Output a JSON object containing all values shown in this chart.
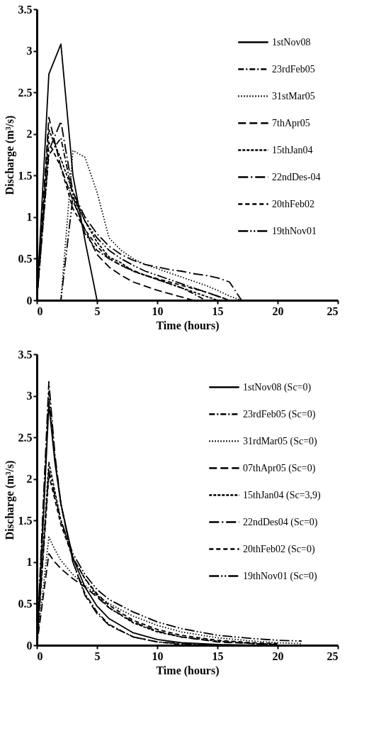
{
  "chart_data": [
    {
      "type": "line",
      "xlabel": "Time (hours)",
      "ylabel": "Discharge (m³/s)",
      "xlim": [
        0,
        25
      ],
      "xticks": [
        0,
        5,
        10,
        15,
        20,
        25
      ],
      "ylim": [
        0,
        3.5
      ],
      "yticks": [
        0,
        0.5,
        1,
        1.5,
        2,
        2.5,
        3,
        3.5
      ],
      "grid": false,
      "legend": "top right",
      "series": [
        {
          "name": "1stNov08",
          "color": "#000000",
          "line_style": "solid",
          "x": [
            0,
            1,
            2,
            3,
            4,
            5
          ],
          "values": [
            0,
            2.72,
            3.08,
            1.5,
            0.72,
            0
          ]
        },
        {
          "name": "23rdFeb05",
          "color": "#000000",
          "line_style": "dashed",
          "x": [
            0,
            1,
            2,
            3,
            4,
            5,
            6,
            7,
            8,
            9,
            10,
            11,
            12,
            13,
            14
          ],
          "values": [
            0,
            1.75,
            1.95,
            1.25,
            0.8,
            0.6,
            0.5,
            0.42,
            0.35,
            0.3,
            0.25,
            0.2,
            0.15,
            0.08,
            0
          ]
        },
        {
          "name": "31stMar05",
          "color": "#000000",
          "line_style": "dotted",
          "x": [
            0,
            1,
            2,
            3,
            4,
            5,
            6,
            7,
            8,
            9,
            10,
            11,
            12,
            13,
            14,
            15,
            16,
            17
          ],
          "values": [
            0,
            0,
            0,
            1.8,
            1.72,
            1.3,
            0.75,
            0.6,
            0.5,
            0.43,
            0.38,
            0.33,
            0.28,
            0.23,
            0.18,
            0.12,
            0.05,
            0
          ]
        },
        {
          "name": "7thApr05",
          "color": "#000000",
          "line_style": "dashed",
          "x": [
            0,
            1,
            2,
            3,
            4,
            5,
            6,
            7,
            8,
            9,
            10,
            11,
            12,
            13
          ],
          "values": [
            0,
            2.2,
            1.6,
            1.2,
            0.85,
            0.55,
            0.4,
            0.3,
            0.22,
            0.17,
            0.12,
            0.08,
            0.04,
            0
          ]
        },
        {
          "name": "15thJan04",
          "color": "#000000",
          "line_style": "dashed",
          "x": [
            0,
            1,
            2,
            3,
            4,
            5,
            6,
            7,
            8,
            9,
            10,
            11,
            12,
            13,
            14,
            15
          ],
          "values": [
            0,
            2.05,
            1.7,
            1.3,
            0.95,
            0.7,
            0.52,
            0.45,
            0.35,
            0.3,
            0.25,
            0.2,
            0.15,
            0.1,
            0.05,
            0
          ]
        },
        {
          "name": "22ndDes-04",
          "color": "#000000",
          "line_style": "dashed",
          "x": [
            0,
            1,
            2,
            3,
            4,
            5,
            6,
            7,
            8,
            9,
            10,
            11,
            12,
            13,
            14,
            15,
            16,
            17
          ],
          "values": [
            0,
            1.8,
            2.15,
            1.3,
            1.0,
            0.8,
            0.65,
            0.55,
            0.48,
            0.43,
            0.4,
            0.37,
            0.35,
            0.32,
            0.3,
            0.27,
            0.22,
            0
          ]
        },
        {
          "name": "20thFeb02",
          "color": "#000000",
          "line_style": "dashed",
          "x": [
            0,
            1,
            2,
            3,
            4,
            5,
            6,
            7,
            8,
            9,
            10,
            11,
            12,
            13,
            14,
            15,
            16
          ],
          "values": [
            0,
            1.9,
            1.6,
            1.1,
            0.85,
            0.65,
            0.5,
            0.42,
            0.36,
            0.3,
            0.26,
            0.22,
            0.18,
            0.14,
            0.1,
            0.05,
            0
          ]
        },
        {
          "name": "19thNov01",
          "color": "#000000",
          "line_style": "dashed",
          "x": [
            0,
            1,
            2,
            3,
            4,
            5,
            6,
            7,
            8,
            9,
            10,
            11,
            12,
            13,
            14,
            15,
            16
          ],
          "values": [
            0,
            0,
            0,
            1.25,
            0.95,
            0.75,
            0.6,
            0.5,
            0.42,
            0.35,
            0.3,
            0.25,
            0.2,
            0.15,
            0.1,
            0.05,
            0
          ]
        }
      ]
    },
    {
      "type": "line",
      "xlabel": "Time (hours)",
      "ylabel": "Discharge (m³/s)",
      "xlim": [
        0,
        25
      ],
      "xticks": [
        0,
        5,
        10,
        15,
        20,
        25
      ],
      "ylim": [
        0,
        3.5
      ],
      "yticks": [
        0,
        0.5,
        1,
        1.5,
        2,
        2.5,
        3,
        3.5
      ],
      "grid": false,
      "legend": "top right",
      "series": [
        {
          "name": "1stNov08 (Sc=0)",
          "color": "#000000",
          "line_style": "solid",
          "x": [
            0,
            0.5,
            1,
            1.5,
            2,
            3,
            4,
            5,
            6,
            8,
            10,
            12,
            15,
            18
          ],
          "values": [
            0,
            1.4,
            2.9,
            2.2,
            1.7,
            1.05,
            0.7,
            0.47,
            0.32,
            0.15,
            0.07,
            0.03,
            0.01,
            0
          ]
        },
        {
          "name": "23rdFeb05 (Sc=0)",
          "color": "#000000",
          "line_style": "dashed",
          "x": [
            0,
            0.5,
            1,
            1.5,
            2,
            3,
            4,
            5,
            6,
            8,
            10,
            12,
            15
          ],
          "values": [
            0,
            1.5,
            3.05,
            2.25,
            1.7,
            1.0,
            0.62,
            0.4,
            0.25,
            0.1,
            0.04,
            0.01,
            0
          ]
        },
        {
          "name": "31rdMar05 (Sc=0)",
          "color": "#000000",
          "line_style": "dotted",
          "x": [
            0,
            0.5,
            1,
            1.5,
            2,
            3,
            4,
            5,
            6,
            8,
            10,
            12,
            15,
            18,
            20,
            22
          ],
          "values": [
            0,
            0.65,
            1.3,
            1.15,
            1.02,
            0.85,
            0.72,
            0.6,
            0.5,
            0.35,
            0.24,
            0.16,
            0.09,
            0.05,
            0.03,
            0.02
          ]
        },
        {
          "name": "07thApr05 (Sc=0)",
          "color": "#000000",
          "line_style": "dashed",
          "x": [
            0,
            0.5,
            1,
            1.5,
            2,
            3,
            4,
            5,
            6,
            8,
            10,
            12,
            15,
            18,
            20
          ],
          "values": [
            0,
            0.55,
            1.1,
            1.0,
            0.92,
            0.8,
            0.7,
            0.58,
            0.45,
            0.28,
            0.17,
            0.1,
            0.04,
            0.02,
            0.01
          ]
        },
        {
          "name": "15thJan04 (Sc=3,9)",
          "color": "#000000",
          "line_style": "dashed",
          "x": [
            0,
            0.5,
            1,
            1.5,
            2,
            3,
            4,
            5,
            6,
            8,
            10,
            12,
            15,
            18,
            20
          ],
          "values": [
            0,
            1.1,
            2.2,
            1.85,
            1.5,
            1.05,
            0.8,
            0.6,
            0.45,
            0.27,
            0.16,
            0.1,
            0.05,
            0.02,
            0.01
          ]
        },
        {
          "name": "22ndDes04 (Sc=0)",
          "color": "#000000",
          "line_style": "dashed",
          "x": [
            0,
            0.5,
            1,
            1.5,
            2,
            3,
            4,
            5,
            6,
            8,
            10,
            12,
            15
          ],
          "values": [
            0,
            1.6,
            3.17,
            2.3,
            1.7,
            1.0,
            0.6,
            0.38,
            0.24,
            0.1,
            0.04,
            0.02,
            0
          ]
        },
        {
          "name": "20thFeb02 (Sc=0)",
          "color": "#000000",
          "line_style": "dashed",
          "x": [
            0,
            0.5,
            1,
            1.5,
            2,
            3,
            4,
            5,
            6,
            8,
            10,
            12,
            15,
            18,
            20
          ],
          "values": [
            0,
            1.0,
            2.05,
            1.75,
            1.45,
            1.05,
            0.8,
            0.62,
            0.48,
            0.3,
            0.19,
            0.12,
            0.06,
            0.03,
            0.02
          ]
        },
        {
          "name": "19thNov01 (Sc=0)",
          "color": "#000000",
          "line_style": "dashed",
          "x": [
            0,
            0.5,
            1,
            1.5,
            2,
            3,
            4,
            5,
            6,
            8,
            10,
            12,
            15,
            18,
            20,
            22
          ],
          "values": [
            0,
            1.05,
            2.1,
            1.8,
            1.5,
            1.1,
            0.85,
            0.67,
            0.55,
            0.4,
            0.28,
            0.2,
            0.12,
            0.08,
            0.06,
            0.05
          ]
        }
      ]
    }
  ]
}
